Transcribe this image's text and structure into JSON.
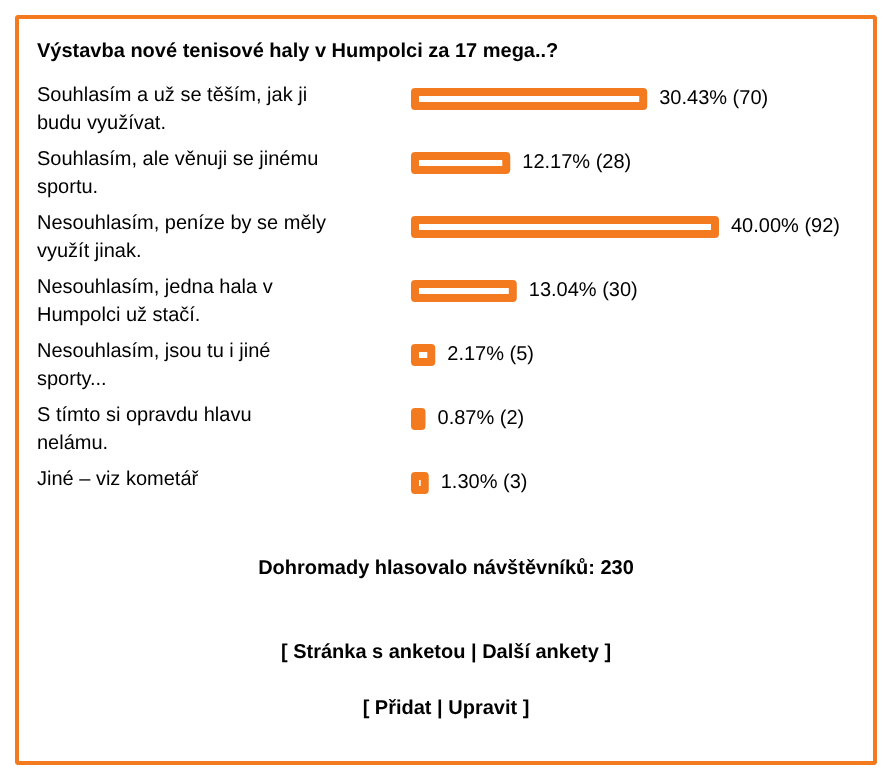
{
  "chart_data": {
    "type": "bar",
    "orientation": "horizontal",
    "title": "Výstavba nové tenisové haly v Humpolci za 17 mega..?",
    "categories": [
      "Souhlasím a už se těším, jak ji budu využívat.",
      "Souhlasím, ale věnuji se jinému sportu.",
      "Nesouhlasím, peníze by se měly využít jinak.",
      "Nesouhlasím, jedna hala v Humpolci už stačí.",
      "Nesouhlasím, jsou tu i jiné sporty...",
      "S tímto si opravdu hlavu nelámu.",
      "Jiné – viz kometář"
    ],
    "values": [
      30.43,
      12.17,
      40.0,
      13.04,
      2.17,
      0.87,
      1.3
    ],
    "value_labels": [
      "30.43% (70)",
      "12.17% (28)",
      "40.00% (92)",
      "13.04% (30)",
      "2.17% (5)",
      "0.87% (2)",
      "1.30% (3)"
    ],
    "color": "#f47a20",
    "annotations": [
      "Dohromady hlasovalo návštěvníků: 230",
      "[ Stránka s anketou | Další ankety ]",
      "[ Přidat | Upravit ]"
    ]
  }
}
